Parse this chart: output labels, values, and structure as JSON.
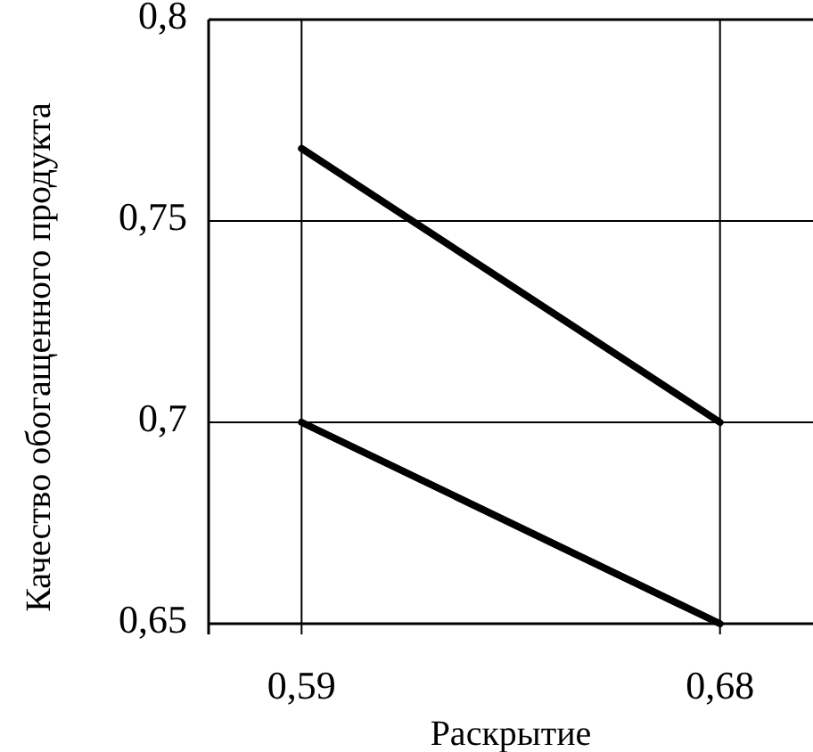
{
  "chart_data": {
    "type": "line",
    "xlabel": "Раскрытие",
    "ylabel": "Качество обогащенного продукта",
    "xlim": [
      0.57,
      0.7
    ],
    "xticks": [
      {
        "value": 0.59,
        "label": "0,59"
      },
      {
        "value": 0.68,
        "label": "0,68"
      }
    ],
    "ylim": [
      0.65,
      0.8
    ],
    "yticks": [
      {
        "value": 0.65,
        "label": "0,65"
      },
      {
        "value": 0.7,
        "label": "0,7"
      },
      {
        "value": 0.75,
        "label": "0,75"
      },
      {
        "value": 0.8,
        "label": "0,8"
      }
    ],
    "x": [
      0.59,
      0.68
    ],
    "grid": true,
    "line_style": "solid",
    "marker": "none",
    "series": [
      {
        "color": "#000000",
        "values": [
          0.768,
          0.7
        ]
      },
      {
        "color": "#000000",
        "values": [
          0.7,
          0.65
        ]
      }
    ]
  }
}
